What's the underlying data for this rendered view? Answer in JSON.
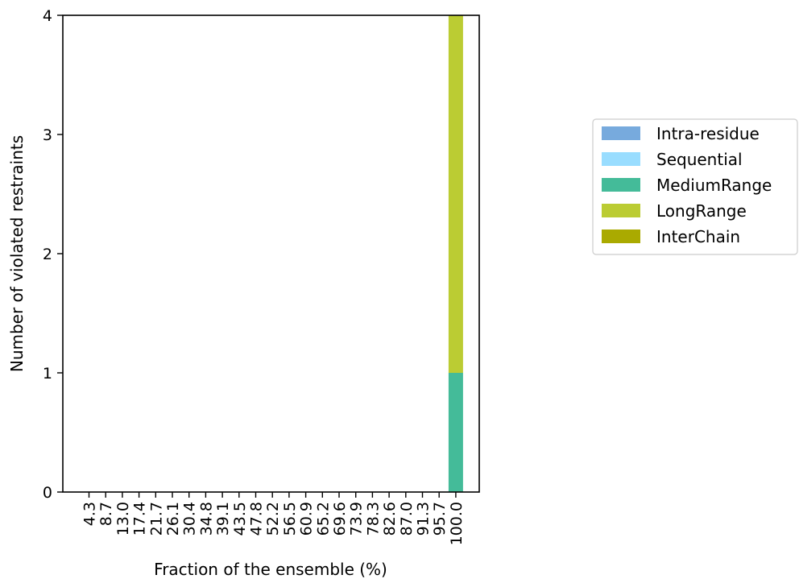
{
  "chart_data": {
    "type": "bar",
    "stacked": true,
    "title": "",
    "xlabel": "Fraction of the ensemble (%)",
    "ylabel": "Number of violated restraints",
    "ylim": [
      0,
      4
    ],
    "yticks": [
      0,
      1,
      2,
      3,
      4
    ],
    "categories": [
      "4.3",
      "8.7",
      "13.0",
      "17.4",
      "21.7",
      "26.1",
      "30.4",
      "34.8",
      "39.1",
      "43.5",
      "47.8",
      "52.2",
      "56.5",
      "60.9",
      "65.2",
      "69.6",
      "73.9",
      "78.3",
      "82.6",
      "87.0",
      "91.3",
      "95.7",
      "100.0"
    ],
    "series": [
      {
        "name": "Intra-residue",
        "color": "#77aadd",
        "values": [
          0,
          0,
          0,
          0,
          0,
          0,
          0,
          0,
          0,
          0,
          0,
          0,
          0,
          0,
          0,
          0,
          0,
          0,
          0,
          0,
          0,
          0,
          0
        ]
      },
      {
        "name": "Sequential",
        "color": "#99ddff",
        "values": [
          0,
          0,
          0,
          0,
          0,
          0,
          0,
          0,
          0,
          0,
          0,
          0,
          0,
          0,
          0,
          0,
          0,
          0,
          0,
          0,
          0,
          0,
          0
        ]
      },
      {
        "name": "MediumRange",
        "color": "#44bb99",
        "values": [
          0,
          0,
          0,
          0,
          0,
          0,
          0,
          0,
          0,
          0,
          0,
          0,
          0,
          0,
          0,
          0,
          0,
          0,
          0,
          0,
          0,
          0,
          1
        ]
      },
      {
        "name": "LongRange",
        "color": "#bbcc33",
        "values": [
          0,
          0,
          0,
          0,
          0,
          0,
          0,
          0,
          0,
          0,
          0,
          0,
          0,
          0,
          0,
          0,
          0,
          0,
          0,
          0,
          0,
          0,
          3
        ]
      },
      {
        "name": "InterChain",
        "color": "#aaaa00",
        "values": [
          0,
          0,
          0,
          0,
          0,
          0,
          0,
          0,
          0,
          0,
          0,
          0,
          0,
          0,
          0,
          0,
          0,
          0,
          0,
          0,
          0,
          0,
          0
        ]
      }
    ],
    "legend_position": "right",
    "grid": false
  }
}
